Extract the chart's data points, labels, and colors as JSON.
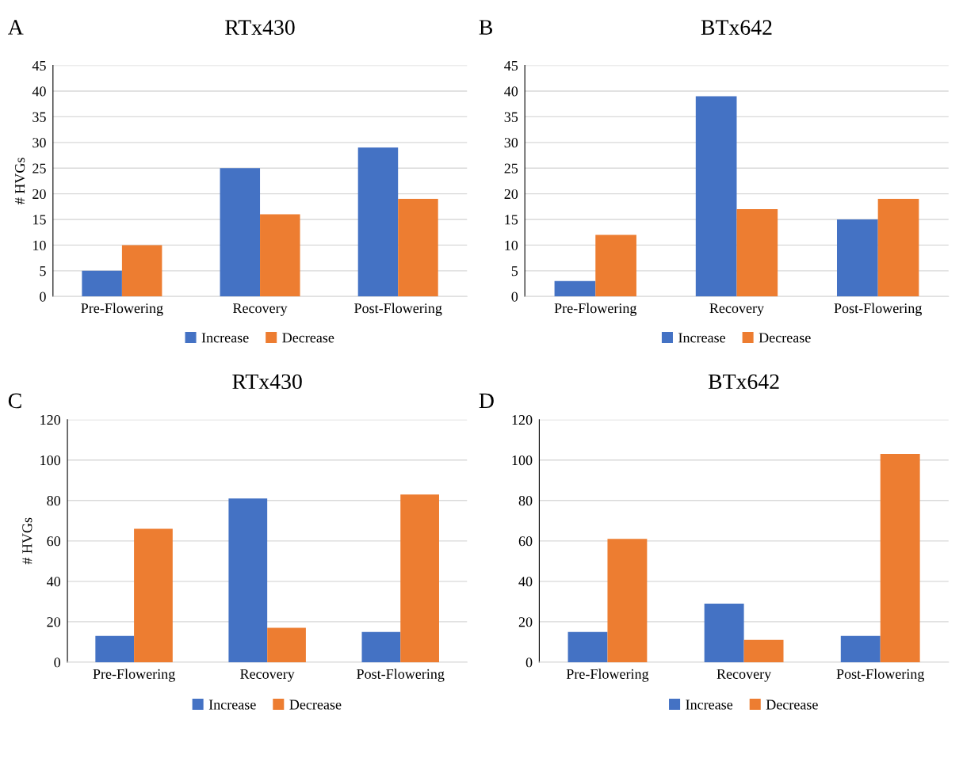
{
  "chart_data": [
    {
      "type": "bar",
      "title": "RTx430",
      "ylabel": "# HVGs",
      "annotations": [
        "A"
      ],
      "categories": [
        "Pre-Flowering",
        "Recovery",
        "Post-Flowering"
      ],
      "ylim": [
        0,
        45
      ],
      "yticks": [
        0,
        5,
        10,
        15,
        20,
        25,
        30,
        35,
        40,
        45
      ],
      "grid": "y",
      "legend": "bottom",
      "series": [
        {
          "name": "Increase",
          "color": "#4472c4",
          "values": [
            5,
            25,
            29
          ]
        },
        {
          "name": "Decrease",
          "color": "#ed7d31",
          "values": [
            10,
            16,
            19
          ]
        }
      ]
    },
    {
      "type": "bar",
      "title": "BTx642",
      "annotations": [
        "B"
      ],
      "categories": [
        "Pre-Flowering",
        "Recovery",
        "Post-Flowering"
      ],
      "ylim": [
        0,
        45
      ],
      "yticks": [
        0,
        5,
        10,
        15,
        20,
        25,
        30,
        35,
        40,
        45
      ],
      "grid": "y",
      "legend": "bottom",
      "series": [
        {
          "name": "Increase",
          "color": "#4472c4",
          "values": [
            3,
            39,
            15
          ]
        },
        {
          "name": "Decrease",
          "color": "#ed7d31",
          "values": [
            12,
            17,
            19
          ]
        }
      ]
    },
    {
      "type": "bar",
      "title": "RTx430",
      "ylabel": "# HVGs",
      "annotations": [
        "C"
      ],
      "categories": [
        "Pre-Flowering",
        "Recovery",
        "Post-Flowering"
      ],
      "ylim": [
        0,
        120
      ],
      "yticks": [
        0,
        20,
        40,
        60,
        80,
        100,
        120
      ],
      "grid": "y",
      "legend": "bottom",
      "series": [
        {
          "name": "Increase",
          "color": "#4472c4",
          "values": [
            13,
            81,
            15
          ]
        },
        {
          "name": "Decrease",
          "color": "#ed7d31",
          "values": [
            66,
            17,
            83
          ]
        }
      ]
    },
    {
      "type": "bar",
      "title": "BTx642",
      "annotations": [
        "D"
      ],
      "categories": [
        "Pre-Flowering",
        "Recovery",
        "Post-Flowering"
      ],
      "ylim": [
        0,
        120
      ],
      "yticks": [
        0,
        20,
        40,
        60,
        80,
        100,
        120
      ],
      "grid": "y",
      "legend": "bottom",
      "series": [
        {
          "name": "Increase",
          "color": "#4472c4",
          "values": [
            15,
            29,
            13
          ]
        },
        {
          "name": "Decrease",
          "color": "#ed7d31",
          "values": [
            61,
            11,
            103
          ]
        }
      ]
    }
  ]
}
